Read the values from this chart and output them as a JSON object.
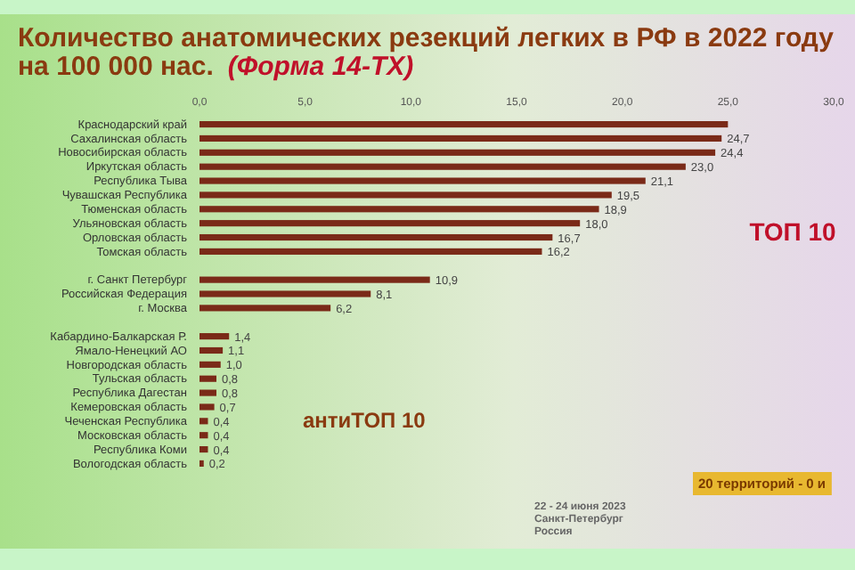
{
  "chart_data": {
    "type": "bar",
    "orientation": "horizontal",
    "title": "Количество анатомических резекций легких в РФ в 2022 году на 100 000 нас.",
    "subtitle": "(Форма 14-ТХ)",
    "categories": [
      "Краснодарский край",
      "Сахалинская область",
      "Новосибирская область",
      "Иркутская область",
      "Республика Тыва",
      "Чувашская Республика",
      "Тюменская область",
      "Ульяновская область",
      "Орловская область",
      "Томская область",
      null,
      "г. Санкт Петербург",
      "Российская Федерация",
      "г. Москва",
      null,
      "Кабардино-Балкарская Р.",
      "Ямало-Ненецкий АО",
      "Новгородская область",
      "Тульская область",
      "Республика Дагестан",
      "Кемеровская область",
      "Чеченская Республика",
      "Московская область",
      "Республика Коми",
      "Вологодская область"
    ],
    "values": [
      25.0,
      24.7,
      24.4,
      23.0,
      21.1,
      19.5,
      18.9,
      18.0,
      16.7,
      16.2,
      null,
      10.9,
      8.1,
      6.2,
      null,
      1.4,
      1.1,
      1.0,
      0.8,
      0.8,
      0.7,
      0.4,
      0.4,
      0.4,
      0.2
    ],
    "value_labels": [
      null,
      "24,7",
      "24,4",
      "23,0",
      "21,1",
      "19,5",
      "18,9",
      "18,0",
      "16,7",
      "16,2",
      null,
      "10,9",
      "8,1",
      "6,2",
      null,
      "1,4",
      "1,1",
      "1,0",
      "0,8",
      "0,8",
      "0,7",
      "0,4",
      "0,4",
      "0,4",
      "0,2"
    ],
    "color": "#7a2a18",
    "xlim": [
      0,
      30
    ],
    "xticks": [
      {
        "value": 0,
        "label": "0,0"
      },
      {
        "value": 5,
        "label": "5,0"
      },
      {
        "value": 10,
        "label": "10,0"
      },
      {
        "value": 15,
        "label": "15,0"
      },
      {
        "value": 20,
        "label": "20,0"
      },
      {
        "value": 25,
        "label": "25,0"
      },
      {
        "value": 30,
        "label": "30,0"
      }
    ],
    "grid": false,
    "annotations": [
      "ТОП 10",
      "антиТОП 10",
      "20 территорий - 0 и",
      "22 - 24 июня 2023 Санкт-Петербург Россия"
    ]
  }
}
